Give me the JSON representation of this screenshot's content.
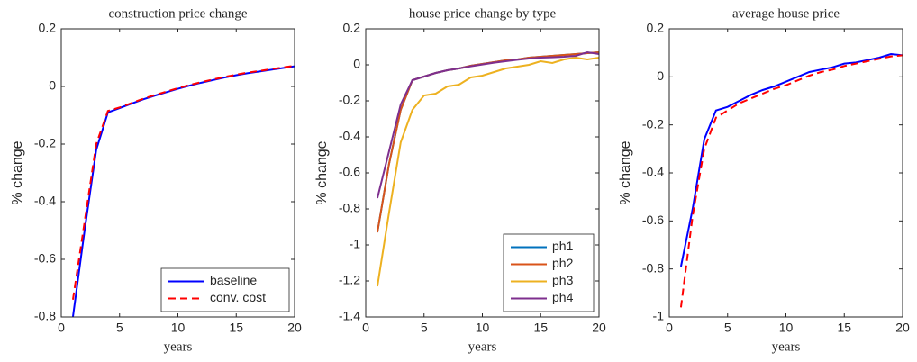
{
  "chart_data": [
    {
      "type": "line",
      "title": "construction price change",
      "xlabel": "years",
      "ylabel": "% change",
      "x": [
        1,
        2,
        3,
        4,
        5,
        6,
        7,
        8,
        9,
        10,
        11,
        12,
        13,
        14,
        15,
        16,
        17,
        18,
        19,
        20
      ],
      "series": [
        {
          "name": "baseline",
          "color": "#0000ff",
          "dash": false,
          "values": [
            -0.8,
            -0.5,
            -0.22,
            -0.09,
            -0.075,
            -0.06,
            -0.045,
            -0.032,
            -0.02,
            -0.008,
            0.003,
            0.013,
            0.022,
            0.031,
            0.039,
            0.046,
            0.052,
            0.058,
            0.064,
            0.07
          ]
        },
        {
          "name": "conv. cost",
          "color": "#ff0000",
          "dash": true,
          "values": [
            -0.74,
            -0.47,
            -0.2,
            -0.085,
            -0.073,
            -0.058,
            -0.043,
            -0.03,
            -0.018,
            -0.006,
            0.005,
            0.015,
            0.024,
            0.033,
            0.041,
            0.048,
            0.054,
            0.06,
            0.066,
            0.072
          ]
        }
      ],
      "xlim": [
        0,
        20
      ],
      "xticks": [
        0,
        5,
        10,
        15,
        20
      ],
      "ylim": [
        -0.8,
        0.2
      ],
      "yticks": [
        -0.8,
        -0.6,
        -0.4,
        -0.2,
        0,
        0.2
      ],
      "legend": "southeast"
    },
    {
      "type": "line",
      "title": "house price change by type",
      "xlabel": "years",
      "ylabel": "% change",
      "x": [
        1,
        2,
        3,
        4,
        5,
        6,
        7,
        8,
        9,
        10,
        11,
        12,
        13,
        14,
        15,
        16,
        17,
        18,
        19,
        20
      ],
      "series": [
        {
          "name": "ph1",
          "color": "#0072bd",
          "dash": false,
          "values": [
            -0.93,
            -0.55,
            -0.25,
            -0.085,
            -0.065,
            -0.045,
            -0.03,
            -0.02,
            -0.005,
            0.005,
            0.015,
            0.025,
            0.03,
            0.04,
            0.045,
            0.05,
            0.055,
            0.06,
            0.065,
            0.07
          ]
        },
        {
          "name": "ph2",
          "color": "#d95319",
          "dash": false,
          "values": [
            -0.93,
            -0.55,
            -0.25,
            -0.085,
            -0.065,
            -0.045,
            -0.03,
            -0.02,
            -0.005,
            0.005,
            0.015,
            0.025,
            0.03,
            0.04,
            0.045,
            0.05,
            0.055,
            0.06,
            0.065,
            0.07
          ]
        },
        {
          "name": "ph3",
          "color": "#edb120",
          "dash": false,
          "values": [
            -1.23,
            -0.82,
            -0.43,
            -0.25,
            -0.17,
            -0.16,
            -0.12,
            -0.11,
            -0.07,
            -0.06,
            -0.04,
            -0.02,
            -0.01,
            0.0,
            0.02,
            0.01,
            0.03,
            0.04,
            0.03,
            0.04
          ]
        },
        {
          "name": "ph4",
          "color": "#7e2f8e",
          "dash": false,
          "values": [
            -0.74,
            -0.48,
            -0.22,
            -0.085,
            -0.065,
            -0.045,
            -0.03,
            -0.02,
            -0.008,
            0.002,
            0.012,
            0.02,
            0.028,
            0.035,
            0.04,
            0.042,
            0.045,
            0.05,
            0.07,
            0.06
          ]
        }
      ],
      "xlim": [
        0,
        20
      ],
      "xticks": [
        0,
        5,
        10,
        15,
        20
      ],
      "ylim": [
        -1.4,
        0.2
      ],
      "yticks": [
        -1.4,
        -1.2,
        -1,
        -0.8,
        -0.6,
        -0.4,
        -0.2,
        0,
        0.2
      ],
      "legend": "southeast"
    },
    {
      "type": "line",
      "title": "average house price",
      "xlabel": "years",
      "ylabel": "% change",
      "x": [
        1,
        2,
        3,
        4,
        5,
        6,
        7,
        8,
        9,
        10,
        11,
        12,
        13,
        14,
        15,
        16,
        17,
        18,
        19,
        20
      ],
      "series": [
        {
          "name": "baseline",
          "color": "#0000ff",
          "dash": false,
          "values": [
            -0.79,
            -0.55,
            -0.26,
            -0.14,
            -0.125,
            -0.1,
            -0.075,
            -0.055,
            -0.04,
            -0.02,
            0,
            0.02,
            0.03,
            0.04,
            0.055,
            0.06,
            0.07,
            0.08,
            0.095,
            0.09
          ]
        },
        {
          "name": "conv. cost",
          "color": "#ff0000",
          "dash": true,
          "values": [
            -0.96,
            -0.58,
            -0.3,
            -0.17,
            -0.14,
            -0.11,
            -0.09,
            -0.07,
            -0.05,
            -0.035,
            -0.015,
            0.005,
            0.02,
            0.03,
            0.045,
            0.055,
            0.065,
            0.075,
            0.085,
            0.09
          ]
        }
      ],
      "xlim": [
        0,
        20
      ],
      "xticks": [
        0,
        5,
        10,
        15,
        20
      ],
      "ylim": [
        -1,
        0.2
      ],
      "yticks": [
        -1,
        -0.8,
        -0.6,
        -0.4,
        -0.2,
        0,
        0.2
      ],
      "legend": "none"
    }
  ]
}
